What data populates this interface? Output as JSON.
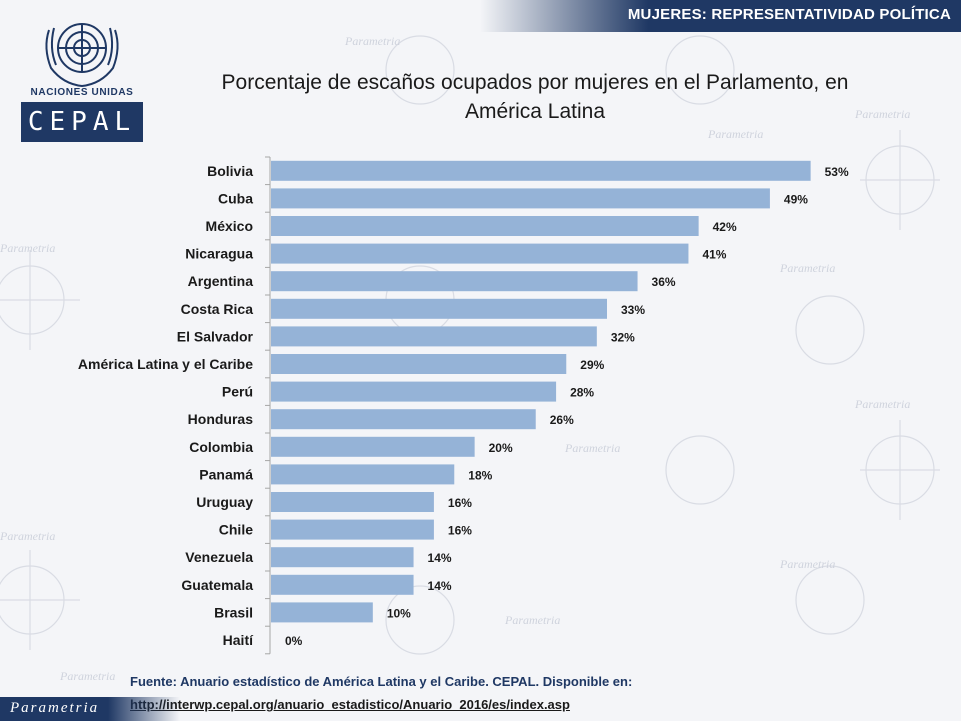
{
  "header": {
    "section_title": "MUJERES: REPRESENTATIVIDAD POLÍTICA"
  },
  "logo": {
    "org_name": "NACIONES UNIDAS",
    "brand": "CEPAL"
  },
  "watermark": {
    "text": "Parametria"
  },
  "footer": {
    "brand": "Parametria",
    "source_line": "Fuente: Anuario estadístico de América Latina y el Caribe. CEPAL. Disponible en:",
    "source_url": "http://interwp.cepal.org/anuario_estadistico/Anuario_2016/es/index.asp"
  },
  "chart_data": {
    "type": "bar",
    "orientation": "horizontal",
    "title": "Porcentaje de escaños ocupados  por mujeres en el Parlamento, en América Latina",
    "categories": [
      "Bolivia",
      "Cuba",
      "México",
      "Nicaragua",
      "Argentina",
      "Costa Rica",
      "El Salvador",
      "América Latina y el Caribe",
      "Perú",
      "Honduras",
      "Colombia",
      "Panamá",
      "Uruguay",
      "Chile",
      "Venezuela",
      "Guatemala",
      "Brasil",
      "Haití"
    ],
    "values": [
      53,
      49,
      42,
      41,
      36,
      33,
      32,
      29,
      28,
      26,
      20,
      18,
      16,
      16,
      14,
      14,
      10,
      0
    ],
    "labels": [
      "53%",
      "49%",
      "42%",
      "41%",
      "36%",
      "33%",
      "32%",
      "29%",
      "28%",
      "26%",
      "20%",
      "18%",
      "16%",
      "16%",
      "14%",
      "14%",
      "10%",
      "0%"
    ],
    "xlim": [
      0,
      55
    ],
    "bar_color": "#95b3d7",
    "axis_color": "#a6a6a6",
    "grid": false,
    "legend": "none"
  }
}
